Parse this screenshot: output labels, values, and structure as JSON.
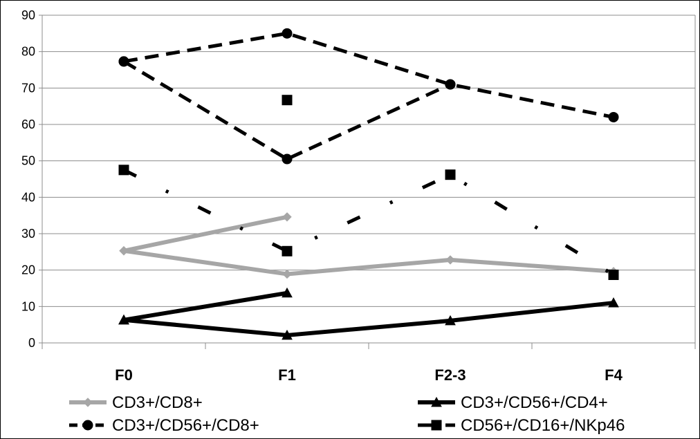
{
  "chart_data": {
    "type": "line",
    "title": "",
    "xlabel": "",
    "ylabel": "",
    "categories": [
      "F0",
      "F1",
      "F2-3",
      "F4"
    ],
    "ylim": [
      0,
      90
    ],
    "y_ticks": [
      0,
      10,
      20,
      30,
      40,
      50,
      60,
      70,
      80,
      90
    ],
    "grid": "horizontal",
    "legend_position": "bottom",
    "series": [
      {
        "name": "CD3+/CD8+",
        "color": "#a6a6a6",
        "marker": "diamond",
        "line_style": "solid",
        "lines": [
          [
            25.3,
            34.6
          ],
          [
            25.3,
            18.9,
            22.8,
            19.6
          ]
        ]
      },
      {
        "name": "CD3+/CD56+/CD4+",
        "color": "#000000",
        "marker": "triangle",
        "line_style": "solid",
        "lines": [
          [
            6.3,
            13.7
          ],
          [
            6.3,
            2.1,
            6.1,
            11.0
          ]
        ]
      },
      {
        "name": "CD3+/CD56+/CD8+",
        "color": "#000000",
        "marker": "circle",
        "line_style": "dashed",
        "lines": [
          [
            77.3,
            85.0,
            71.0,
            62.0
          ],
          [
            77.3,
            50.5,
            71.0
          ]
        ]
      },
      {
        "name": "CD56+/CD16+/NKp46",
        "color": "#000000",
        "marker": "square",
        "line_style": "dash-dot",
        "lines": [
          [
            47.5,
            25.2,
            46.2,
            18.7
          ]
        ],
        "extra_points": [
          [
            1,
            66.7
          ]
        ]
      }
    ]
  }
}
